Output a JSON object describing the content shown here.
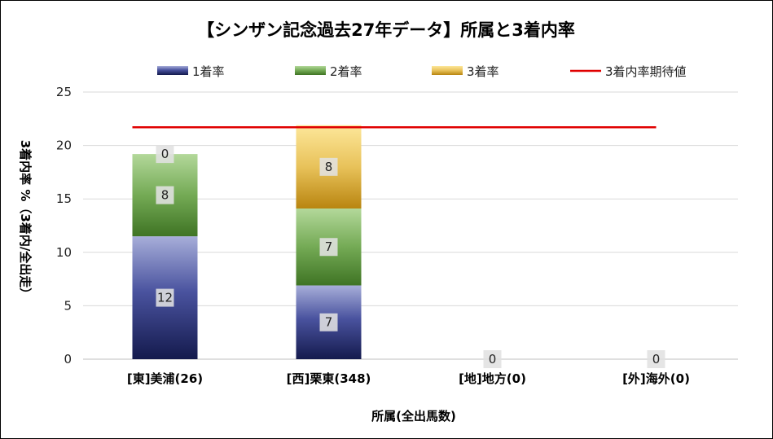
{
  "chart_data": {
    "type": "bar",
    "stacked": true,
    "title": "【シンザン記念過去27年データ】所属と3着内率",
    "xlabel": "所属(全出馬数)",
    "ylabel": "3着内率 %（3着内/全出走）",
    "ylim": [
      0,
      25
    ],
    "yticks": [
      0,
      5,
      10,
      15,
      20,
      25
    ],
    "grid": true,
    "legend_position": "top",
    "categories": [
      "[東]美浦(26)",
      "[西]栗東(348)",
      "[地]地方(0)",
      "[外]海外(0)"
    ],
    "series": [
      {
        "name": "1着率",
        "color": "#2e3580",
        "values": [
          11.5,
          6.9,
          0,
          0
        ],
        "labels": [
          "12",
          "7",
          "0",
          "0"
        ]
      },
      {
        "name": "2着率",
        "color": "#5f9a3c",
        "values": [
          7.7,
          7.2,
          0,
          0
        ],
        "labels": [
          "8",
          "7",
          "",
          ""
        ]
      },
      {
        "name": "3着率",
        "color": "#c8941e",
        "values": [
          0,
          7.8,
          0,
          0
        ],
        "labels": [
          "0",
          "8",
          "",
          ""
        ]
      }
    ],
    "reference_line": {
      "name": "3着内率期待値",
      "value": 21.7,
      "color": "#e00000"
    }
  }
}
